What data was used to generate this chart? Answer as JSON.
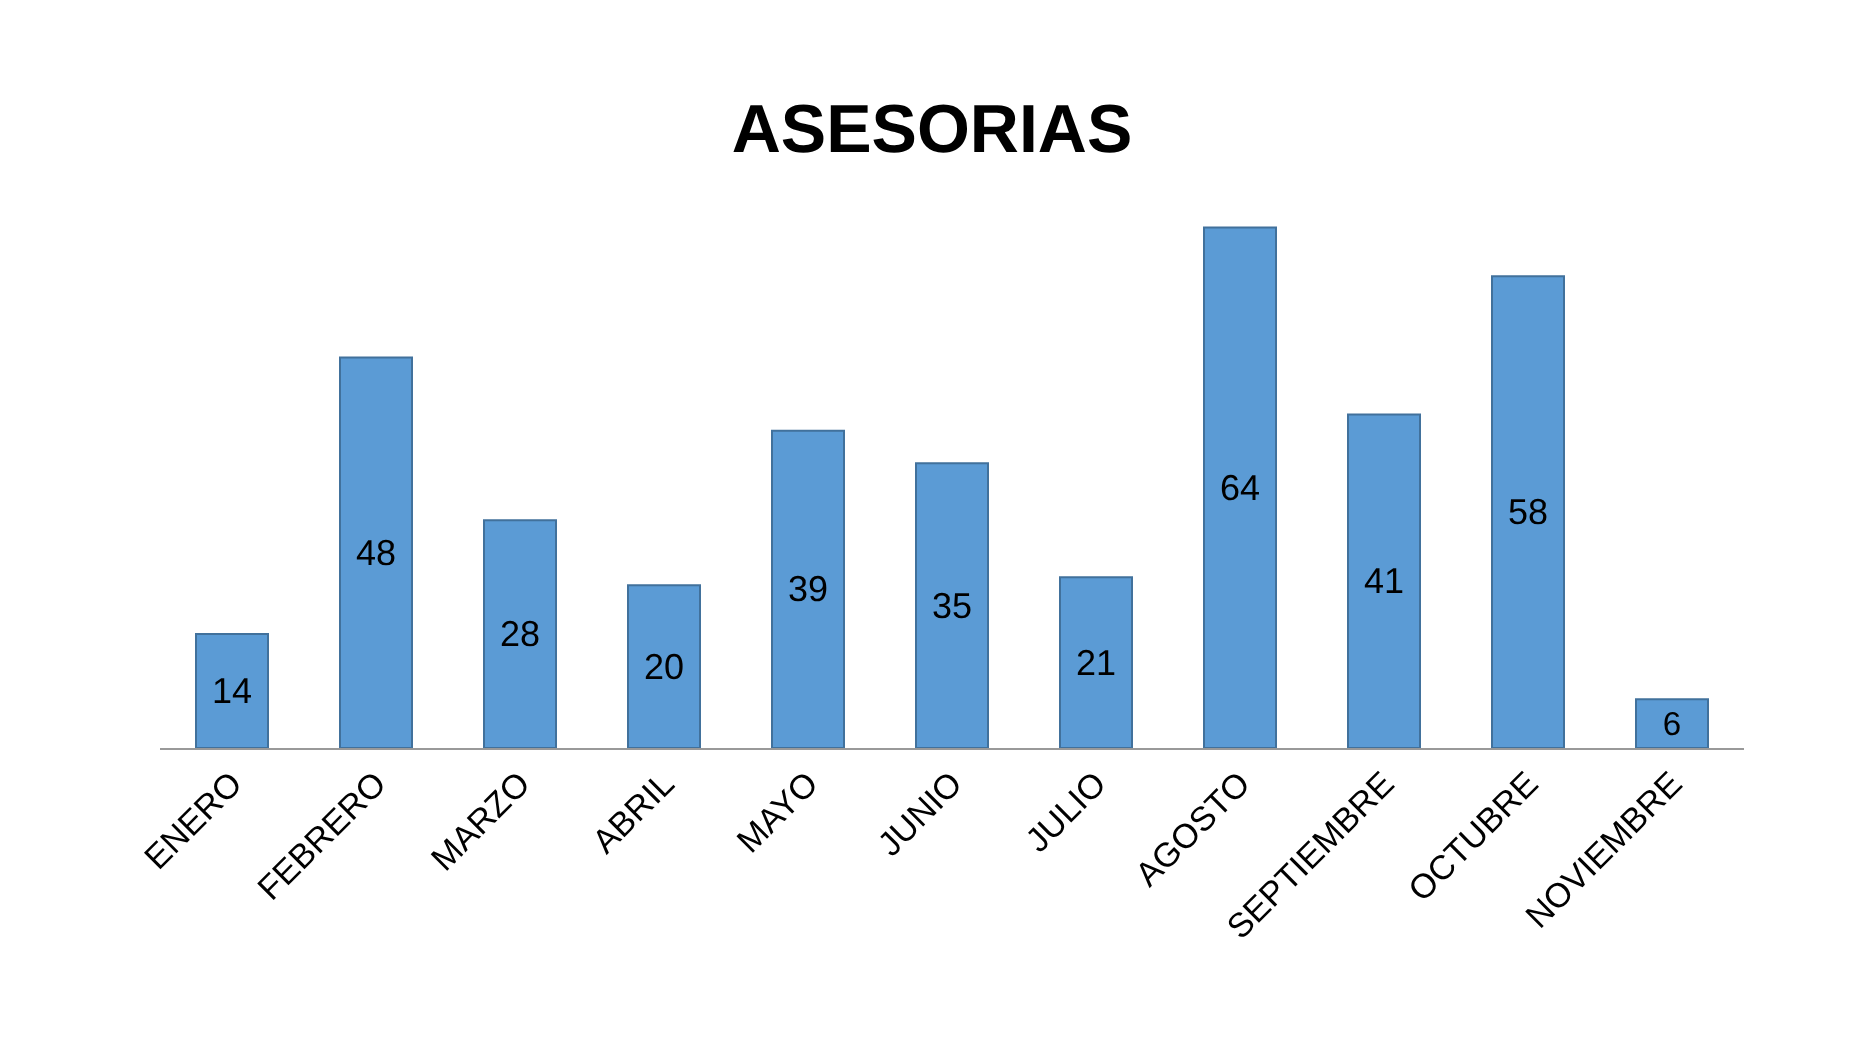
{
  "chart_data": {
    "type": "bar",
    "title": "ASESORIAS",
    "categories": [
      "ENERO",
      "FEBRERO",
      "MARZO",
      "ABRIL",
      "MAYO",
      "JUNIO",
      "JULIO",
      "AGOSTO",
      "SEPTIEMBRE",
      "OCTUBRE",
      "NOVIEMBRE"
    ],
    "values": [
      14,
      48,
      28,
      20,
      39,
      35,
      21,
      64,
      41,
      58,
      6
    ],
    "color": "#5b9bd5",
    "data_labels": true,
    "grid": false,
    "legend": false
  }
}
